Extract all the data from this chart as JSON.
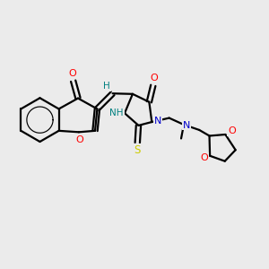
{
  "bg_color": "#ebebeb",
  "line_color": "#000000",
  "bond_width": 1.6,
  "atom_colors": {
    "O": "#ff0000",
    "N": "#0000cc",
    "S": "#cccc00",
    "H_label": "#008080",
    "C": "#000000"
  },
  "figsize": [
    3.0,
    3.0
  ],
  "dpi": 100
}
